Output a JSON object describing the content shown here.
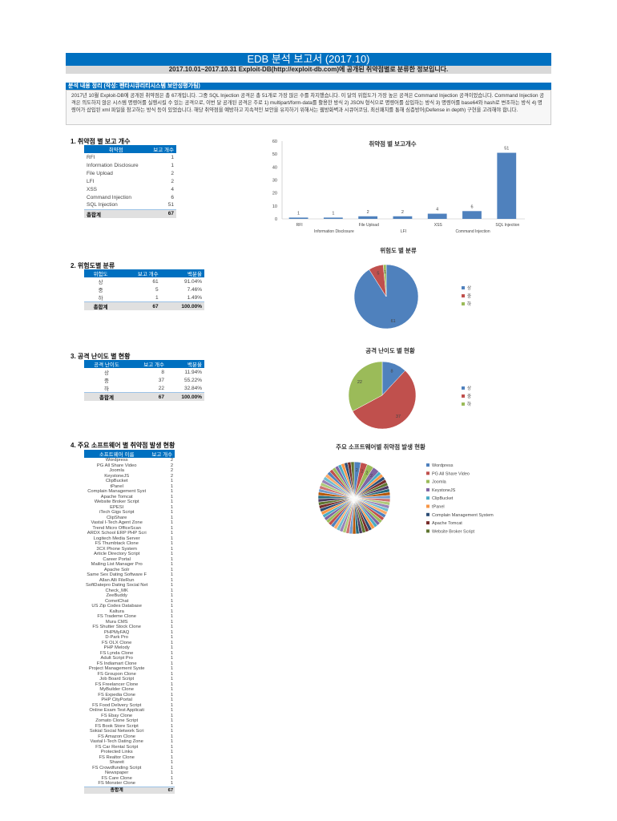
{
  "header": {
    "title": "EDB 분석 보고서 (2017.10)",
    "subtitle": "2017.10.01~2017.10.31 Exploit-DB(http://exploit-db.com)에 공개된 취약점별로 분류한 정보입니다."
  },
  "summary": {
    "heading": "분석 내용 정리 (작성: 펜타시큐리티시스템 보안성평가팀)",
    "text": "2017년 10월 Exploit-DB에 공개된 취약점은 총 67개입니다. 그중 SQL Injection 공격은 총 51개로 가장 많은 수를 차지했습니다. 이 달의 위험도가 가장 높은 공격은 Command Injection 공격이었습니다. Command Injection 공격은 의도하지 않은 시스템 명령어를 실행시킬 수 있는 공격으로, 이번 달 공개된 공격은 주로 1) multipart/form-data를 활용한 방식 2) JSON 형식으로 명령어를 삽입하는 방식 3) 명령어를 base64와 hash로 변조하는 방식 4) 명령어가 삽입된 xml 파일을 참고하는 방식 등이 있었습니다. 해당 취약점을 예방하고 지속적인 보안을 유지하기 위해서는 웹방화벽과 시큐어코딩, 최신패치를 통해 심층방어(Defense in depth) 구현을 고려해야 합니다."
  },
  "table1": {
    "heading": "1. 취약점 별 보고 개수",
    "cols": [
      "취약점",
      "보고 개수"
    ],
    "rows": [
      [
        "RFI",
        "1"
      ],
      [
        "Information Disclosure",
        "1"
      ],
      [
        "File Upload",
        "2"
      ],
      [
        "LFI",
        "2"
      ],
      [
        "XSS",
        "4"
      ],
      [
        "Command Injection",
        "6"
      ],
      [
        "SQL Injection",
        "51"
      ]
    ],
    "total": [
      "총합계",
      "67"
    ]
  },
  "table2": {
    "heading": "2. 위험도별 분류",
    "cols": [
      "위험도",
      "보고 개수",
      "백분율"
    ],
    "rows": [
      [
        "상",
        "61",
        "91.04%"
      ],
      [
        "중",
        "5",
        "7.46%"
      ],
      [
        "하",
        "1",
        "1.49%"
      ]
    ],
    "total": [
      "총합계",
      "67",
      "100.00%"
    ]
  },
  "table3": {
    "heading": "3. 공격 난이도 별 현황",
    "cols": [
      "공격 난이도",
      "보고 개수",
      "백분율"
    ],
    "rows": [
      [
        "상",
        "8",
        "11.94%"
      ],
      [
        "중",
        "37",
        "55.22%"
      ],
      [
        "하",
        "22",
        "32.84%"
      ]
    ],
    "total": [
      "총합계",
      "67",
      "100.00%"
    ]
  },
  "table4": {
    "heading": "4. 주요 소프트웨어 별 취약점 발생 현황",
    "cols": [
      "소프트웨어 이름",
      "보고 개수"
    ],
    "rows": [
      [
        "Wordpress",
        "2"
      ],
      [
        "PG All Share Video",
        "2"
      ],
      [
        "Joomla",
        "2"
      ],
      [
        "KeystoneJS",
        "2"
      ],
      [
        "ClipBucket",
        "1"
      ],
      [
        "tPanel",
        "1"
      ],
      [
        "Complain Management Syst",
        "1"
      ],
      [
        "Apache Tomcat",
        "1"
      ],
      [
        "Website Broker Script",
        "1"
      ],
      [
        "EPESI",
        "1"
      ],
      [
        "iTech Gigs Script",
        "1"
      ],
      [
        "ClipShare",
        "1"
      ],
      [
        "Vastal I-Tech Agent Zone",
        "1"
      ],
      [
        "Trend Micro OfficeScan",
        "1"
      ],
      [
        "ARDX School ERP PHP Scri",
        "1"
      ],
      [
        "Logitech Media Server",
        "1"
      ],
      [
        "FS Thumbtack Clone",
        "1"
      ],
      [
        "3CX Phone System",
        "1"
      ],
      [
        "Article Directory Script",
        "1"
      ],
      [
        "Career Portal",
        "1"
      ],
      [
        "Mailing List Manager Pro",
        "1"
      ],
      [
        "Apache Solr",
        "1"
      ],
      [
        "Same Sex Dating Software F",
        "1"
      ],
      [
        "Allan Alli FileRun",
        "1"
      ],
      [
        "SoftDatepro Dating Social Net",
        "1"
      ],
      [
        "Check_MK",
        "1"
      ],
      [
        "ZeeBuddy",
        "1"
      ],
      [
        "CometChat",
        "1"
      ],
      [
        "US Zip Codes Database",
        "1"
      ],
      [
        "Kaltura",
        "1"
      ],
      [
        "FS Trademe Clone",
        "1"
      ],
      [
        "Mura CMS",
        "1"
      ],
      [
        "FS Shutter Stock Clone",
        "1"
      ],
      [
        "PHPMyFAQ",
        "1"
      ],
      [
        "D-Park Pro",
        "1"
      ],
      [
        "FS OLX Clone",
        "1"
      ],
      [
        "PHP Melody",
        "1"
      ],
      [
        "FS Lynda Clone",
        "1"
      ],
      [
        "Adult Script Pro",
        "1"
      ],
      [
        "FS Indiamart Clone",
        "1"
      ],
      [
        "Project Management Syste",
        "1"
      ],
      [
        "FS Groupon Clone",
        "1"
      ],
      [
        "Job Board Script",
        "1"
      ],
      [
        "FS Freelancer Clone",
        "1"
      ],
      [
        "MyBuilder Clone",
        "1"
      ],
      [
        "FS Expedia Clone",
        "1"
      ],
      [
        "PHP CityPortal",
        "1"
      ],
      [
        "FS Food Delivery Script",
        "1"
      ],
      [
        "Online Exam Test Applicati",
        "1"
      ],
      [
        "FS Ebay Clone",
        "1"
      ],
      [
        "Zomato Clone Script",
        "1"
      ],
      [
        "FS Book Store Script",
        "1"
      ],
      [
        "Sokial Social Network Scri",
        "1"
      ],
      [
        "FS Amazon Clone",
        "1"
      ],
      [
        "Vastal I-Tech Dating Zone",
        "1"
      ],
      [
        "FS Car Rental Script",
        "1"
      ],
      [
        "Protected Links",
        "1"
      ],
      [
        "FS Realtor Clone",
        "1"
      ],
      [
        "Shareit",
        "1"
      ],
      [
        "FS Crowdfunding Script",
        "1"
      ],
      [
        "Newspaper",
        "1"
      ],
      [
        "FS Care Clone",
        "1"
      ],
      [
        "FS Monster Clone",
        "1"
      ]
    ],
    "total": [
      "총합계",
      "67"
    ]
  },
  "colors": {
    "accent": "#0070C0",
    "palette": [
      "#4F81BD",
      "#C0504D",
      "#9BBB59",
      "#8064A2",
      "#4BACC6",
      "#F79646",
      "#2C4D75",
      "#772C2A",
      "#5F7530",
      "#4D3B62",
      "#276A7C",
      "#B65708",
      "#729ACA",
      "#CD7371",
      "#AFC97A",
      "#9983B5",
      "#6FBDD1",
      "#F9AB6B"
    ]
  },
  "chart_data": [
    {
      "type": "bar",
      "title": "취약점 별 보고개수",
      "categories": [
        "RFI",
        "Information Disclosure",
        "File Upload",
        "LFI",
        "XSS",
        "Command Injection",
        "SQL Injection"
      ],
      "values": [
        1,
        1,
        2,
        2,
        4,
        6,
        51
      ],
      "ylim": [
        0,
        60
      ],
      "yticks": [
        0,
        10,
        20,
        30,
        40,
        50,
        60
      ],
      "xlabel": "",
      "ylabel": ""
    },
    {
      "type": "pie",
      "title": "위험도 별 분류",
      "categories": [
        "상",
        "중",
        "하"
      ],
      "values": [
        61,
        5,
        1
      ],
      "legend": "right"
    },
    {
      "type": "pie",
      "title": "공격 난이도 별 현황",
      "categories": [
        "상",
        "중",
        "하"
      ],
      "values": [
        8,
        37,
        22
      ],
      "legend": "right"
    },
    {
      "type": "pie",
      "title": "주요 소프트웨어별 취약점 발생 현황",
      "legend_entries": [
        "Wordpress",
        "PG All Share Video",
        "Joomla",
        "KeystoneJS",
        "ClipBucket",
        "tPanel",
        "Complain Management System",
        "Apache Tomcat",
        "Website Broker Script"
      ],
      "values_from": "table4",
      "legend": "right"
    }
  ]
}
